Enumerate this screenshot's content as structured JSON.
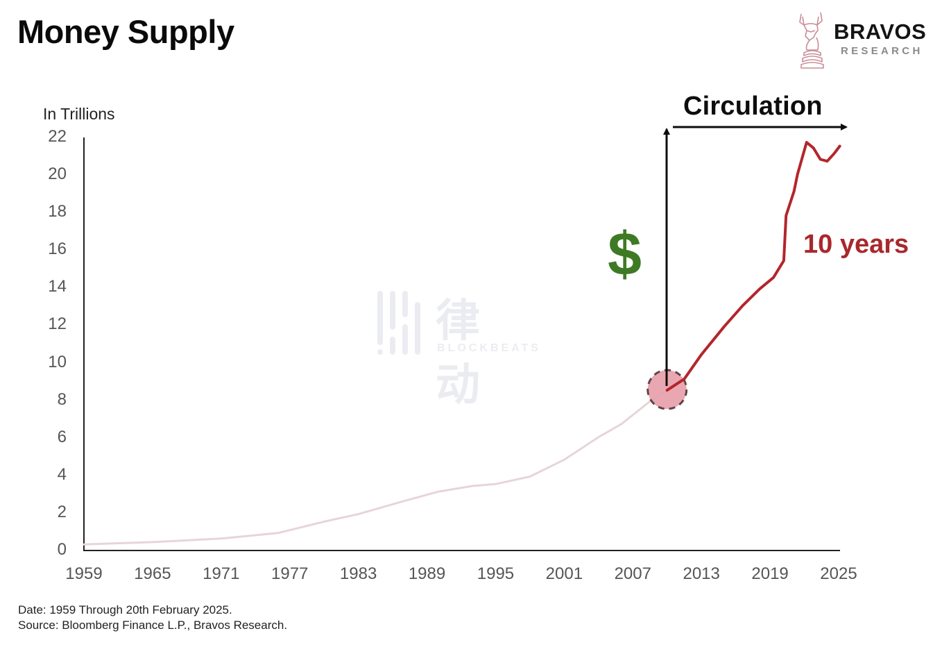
{
  "header": {
    "title": "Money Supply",
    "logo": {
      "icon": "bull-chess-knight-icon",
      "name": "BRAVOS",
      "subtitle": "RESEARCH"
    }
  },
  "watermark": {
    "icon": "blockbeats-bars-icon",
    "text": "律动",
    "subtext": "BLOCKBEATS"
  },
  "annotations": {
    "circulation": "Circulation",
    "dollar": "$",
    "ten_years": "10 years",
    "colors": {
      "dollar": "#3e7a24",
      "highlight_line": "#b3262b",
      "muted_line": "#e7d5d7",
      "circle_fill": "#e8a3ad",
      "circle_stroke": "#5a3a40"
    }
  },
  "footer": {
    "date": "Date: 1959 Through 20th February 2025.",
    "source": "Source: Bloomberg Finance L.P., Bravos Research."
  },
  "chart_data": {
    "type": "line",
    "title": "Money Supply",
    "xlabel": "",
    "ylabel": "In Trillions",
    "xlim": [
      1959,
      2025
    ],
    "ylim": [
      0,
      22
    ],
    "x_ticks": [
      "1959",
      "1965",
      "1971",
      "1977",
      "1983",
      "1989",
      "1995",
      "2001",
      "2007",
      "2013",
      "2019",
      "2025"
    ],
    "y_ticks": [
      "0",
      "2",
      "4",
      "6",
      "8",
      "10",
      "12",
      "14",
      "16",
      "18",
      "20",
      "22"
    ],
    "grid": false,
    "legend": null,
    "series": [
      {
        "name": "Money Supply 1959-2010 (muted)",
        "color": "#e7d5d7",
        "x": [
          1959,
          1965,
          1971,
          1976,
          1980,
          1983,
          1987,
          1990,
          1993,
          1995,
          1998,
          2001,
          2004,
          2006,
          2008.7,
          2010
        ],
        "values": [
          0.29,
          0.41,
          0.6,
          0.9,
          1.5,
          1.9,
          2.6,
          3.1,
          3.4,
          3.5,
          3.9,
          4.8,
          6.0,
          6.7,
          8.0,
          8.5
        ]
      },
      {
        "name": "Money Supply 2010-2025 (highlighted)",
        "color": "#b3262b",
        "x": [
          2010,
          2011.5,
          2013,
          2015,
          2016.6,
          2018.1,
          2019.3,
          2020.2,
          2020.4,
          2021.1,
          2021.4,
          2022.2,
          2022.8,
          2023.4,
          2024,
          2024.6,
          2025.1
        ],
        "values": [
          8.5,
          9.1,
          10.4,
          11.9,
          13.0,
          13.9,
          14.5,
          15.4,
          17.8,
          19.1,
          20.0,
          21.7,
          21.4,
          20.8,
          20.7,
          21.1,
          21.5
        ]
      }
    ],
    "annotations": [
      {
        "type": "circle",
        "x": 2010,
        "y": 8.5,
        "note": "dashed pink marker"
      },
      {
        "type": "arrow-up",
        "from": [
          2010,
          8.5
        ],
        "to": [
          2010,
          22.4
        ],
        "label": "$"
      },
      {
        "type": "arrow-right",
        "from": [
          2010.5,
          22.5
        ],
        "to": [
          2025.8,
          22.5
        ],
        "label": "Circulation"
      },
      {
        "type": "text",
        "label": "10 years",
        "x": 2022.5,
        "y": 16
      }
    ]
  }
}
